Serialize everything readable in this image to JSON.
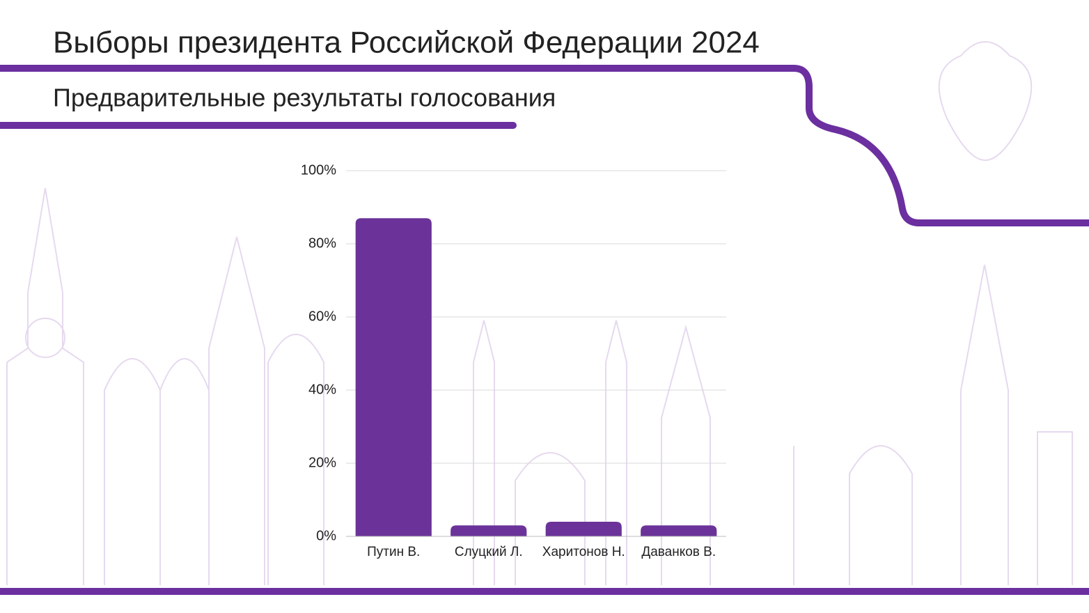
{
  "chart_data": {
    "type": "bar",
    "title": "Выборы президента Российской Федерации 2024",
    "subtitle": "Предварительные результаты голосования",
    "categories": [
      "Путин В.",
      "Слуцкий Л.",
      "Харитонов Н.",
      "Даванков В."
    ],
    "values": [
      87,
      3,
      4,
      3
    ],
    "color": "#6b3399",
    "ylim": [
      0,
      100
    ],
    "yticks": [
      {
        "value": 0,
        "label": "0%"
      },
      {
        "value": 20,
        "label": "20%"
      },
      {
        "value": 40,
        "label": "40%"
      },
      {
        "value": 60,
        "label": "60%"
      },
      {
        "value": 80,
        "label": "80%"
      },
      {
        "value": 100,
        "label": "100%"
      }
    ],
    "grid": true
  }
}
